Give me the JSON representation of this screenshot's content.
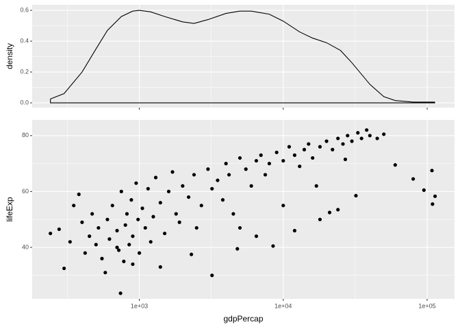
{
  "chart_data": [
    {
      "type": "density",
      "ylabel": "density",
      "x": [
        241,
        300,
        400,
        500,
        600,
        750,
        900,
        1000,
        1200,
        1500,
        2000,
        2400,
        3000,
        4000,
        5000,
        6000,
        8000,
        10000,
        13000,
        16000,
        20000,
        25000,
        30000,
        40000,
        50000,
        60000,
        80000,
        113000
      ],
      "values": [
        0.025,
        0.06,
        0.2,
        0.35,
        0.47,
        0.56,
        0.595,
        0.6,
        0.59,
        0.56,
        0.525,
        0.515,
        0.54,
        0.58,
        0.595,
        0.595,
        0.575,
        0.53,
        0.46,
        0.42,
        0.39,
        0.34,
        0.26,
        0.12,
        0.04,
        0.015,
        0.005,
        0.005
      ],
      "color": "#000000",
      "log_x": true,
      "grid": true,
      "xlim": [
        180,
        155000
      ],
      "xticks": [
        1000,
        10000,
        100000
      ],
      "ylim": [
        -0.031,
        0.636
      ],
      "yticks": [
        {
          "value": 0,
          "label": "0.0"
        },
        0.2,
        0.4,
        0.6
      ]
    },
    {
      "type": "scatter",
      "xlabel": "gdpPercap",
      "ylabel": "lifeExp",
      "x": [
        241,
        277,
        300,
        330,
        350,
        380,
        400,
        420,
        450,
        470,
        500,
        520,
        550,
        580,
        600,
        620,
        650,
        700,
        720,
        750,
        780,
        800,
        820,
        850,
        880,
        900,
        950,
        980,
        1000,
        1050,
        1100,
        1150,
        1200,
        1250,
        1300,
        1400,
        1500,
        1600,
        1700,
        1800,
        1900,
        2000,
        2200,
        2400,
        2500,
        2700,
        3000,
        3200,
        3500,
        3800,
        4000,
        4200,
        4500,
        5000,
        5500,
        6000,
        6500,
        7000,
        7500,
        8000,
        9000,
        10000,
        11000,
        12000,
        13000,
        14000,
        15000,
        16000,
        18000,
        20000,
        22000,
        24000,
        26000,
        28000,
        30000,
        33000,
        35000,
        38000,
        40000,
        45000,
        50000,
        60000,
        80000,
        95000,
        108000,
        109000,
        113500,
        740,
        3200,
        4800,
        6500,
        12000,
        18000,
        21000,
        24000,
        32000,
        2300,
        1400,
        900,
        700,
        8500,
        5000,
        10000,
        17000,
        27000
      ],
      "values": [
        45,
        46.5,
        32.5,
        42,
        55,
        59,
        49,
        38,
        44,
        52,
        41,
        47,
        36,
        31,
        50,
        43,
        55,
        46,
        39,
        60,
        35,
        48,
        52,
        41,
        57,
        44,
        63,
        50,
        38,
        54,
        47,
        61,
        42,
        51,
        65,
        56,
        45,
        60,
        67,
        52,
        49,
        62,
        58,
        66,
        47,
        55,
        68,
        61,
        64,
        57,
        70,
        66,
        52,
        72,
        68,
        62,
        71,
        73,
        66,
        70,
        74,
        71,
        76,
        73,
        69,
        75,
        77,
        72,
        76,
        78,
        75,
        79,
        77,
        80,
        78,
        81,
        79,
        82,
        80,
        79,
        80.5,
        69.5,
        64.5,
        60.5,
        67.5,
        55.5,
        58.3,
        23.6,
        30,
        39.5,
        44,
        46,
        50,
        52.5,
        53.5,
        58.5,
        37.5,
        33,
        34,
        40,
        40.5,
        47,
        55,
        62,
        71.5
      ],
      "color": "#000000",
      "log_x": true,
      "grid": true,
      "xlim": [
        180,
        155000
      ],
      "xticks": [
        {
          "value": 1000,
          "label": "1e+03"
        },
        {
          "value": 10000,
          "label": "1e+04"
        },
        {
          "value": 100000,
          "label": "1e+05"
        }
      ],
      "ylim": [
        21.6,
        85.6
      ],
      "yticks": [
        40,
        60,
        80
      ]
    }
  ]
}
